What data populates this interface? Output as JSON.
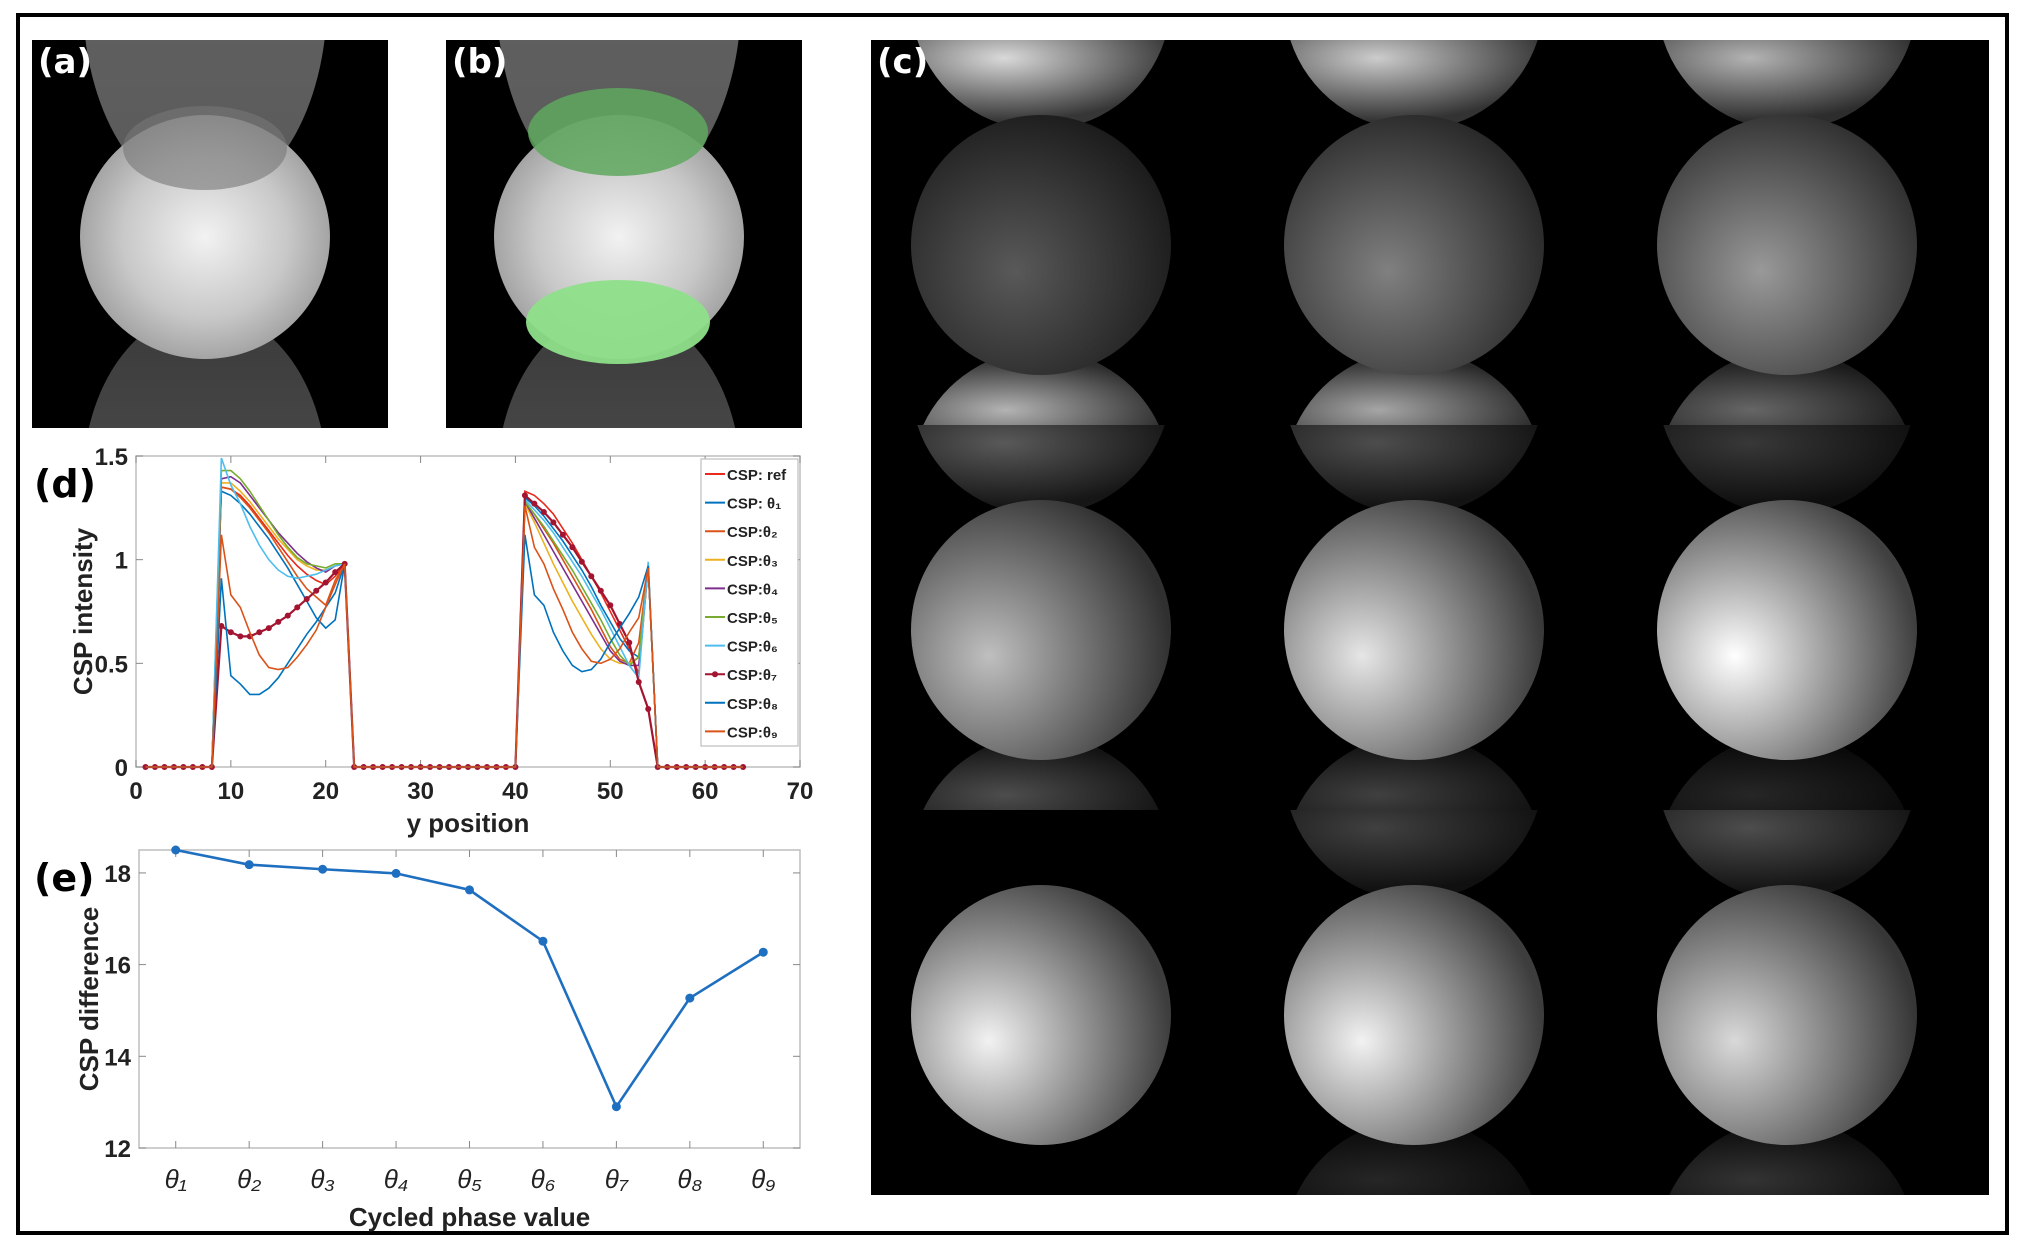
{
  "panels": {
    "a": {
      "label": "(a)"
    },
    "b": {
      "label": "(b)"
    },
    "c": {
      "label": "(c)"
    }
  },
  "chart_data": [
    {
      "type": "line",
      "panel_label": "(d)",
      "xlabel": "y position",
      "ylabel": "CSP intensity",
      "xlim": [
        0,
        70
      ],
      "ylim": [
        0,
        1.5
      ],
      "xticks": [
        0,
        10,
        20,
        30,
        40,
        50,
        60,
        70
      ],
      "xtick_labels": [
        "0",
        "10",
        "20",
        "30",
        "40",
        "50",
        "60",
        "70"
      ],
      "yticks": [
        0,
        0.5,
        1,
        1.5
      ],
      "ytick_labels": [
        "0",
        "0.5",
        "1",
        "1.5"
      ],
      "legend_position": "top-right",
      "x": [
        1,
        2,
        3,
        4,
        5,
        6,
        7,
        8,
        9,
        10,
        11,
        12,
        13,
        14,
        15,
        16,
        17,
        18,
        19,
        20,
        21,
        22,
        23,
        24,
        25,
        26,
        27,
        28,
        29,
        30,
        31,
        32,
        33,
        34,
        35,
        36,
        37,
        38,
        39,
        40,
        41,
        42,
        43,
        44,
        45,
        46,
        47,
        48,
        49,
        50,
        51,
        52,
        53,
        54,
        55,
        56,
        57,
        58,
        59,
        60,
        61,
        62,
        63,
        64
      ],
      "series": [
        {
          "name": "CSP: ref",
          "color": "#E8291C",
          "marker": false,
          "values": [
            0,
            0,
            0,
            0,
            0,
            0,
            0,
            0,
            1.35,
            1.34,
            1.31,
            1.26,
            1.2,
            1.14,
            1.08,
            1.02,
            0.97,
            0.93,
            0.9,
            0.88,
            0.92,
            0.98,
            0,
            0,
            0,
            0,
            0,
            0,
            0,
            0,
            0,
            0,
            0,
            0,
            0,
            0,
            0,
            0,
            0,
            0,
            1.33,
            1.31,
            1.27,
            1.22,
            1.15,
            1.08,
            1.0,
            0.92,
            0.84,
            0.75,
            0.66,
            0.57,
            0.45,
            0.97,
            0,
            0,
            0,
            0,
            0,
            0,
            0,
            0,
            0,
            0
          ]
        },
        {
          "name": "CSP: θ₁",
          "color": "#0072BD",
          "marker": false,
          "values": [
            0,
            0,
            0,
            0,
            0,
            0,
            0,
            0,
            1.33,
            1.31,
            1.27,
            1.22,
            1.16,
            1.1,
            1.03,
            0.96,
            0.88,
            0.8,
            0.72,
            0.67,
            0.71,
            0.98,
            0,
            0,
            0,
            0,
            0,
            0,
            0,
            0,
            0,
            0,
            0,
            0,
            0,
            0,
            0,
            0,
            0,
            0,
            1.3,
            1.26,
            1.21,
            1.15,
            1.09,
            1.02,
            0.95,
            0.87,
            0.78,
            0.7,
            0.62,
            0.56,
            0.53,
            0.97,
            0,
            0,
            0,
            0,
            0,
            0,
            0,
            0,
            0,
            0
          ]
        },
        {
          "name": "CSP:θ₂",
          "color": "#D95319",
          "marker": false,
          "values": [
            0,
            0,
            0,
            0,
            0,
            0,
            0,
            0,
            1.35,
            1.34,
            1.3,
            1.25,
            1.19,
            1.13,
            1.06,
            0.99,
            0.92,
            0.86,
            0.82,
            0.78,
            0.9,
            0.98,
            0,
            0,
            0,
            0,
            0,
            0,
            0,
            0,
            0,
            0,
            0,
            0,
            0,
            0,
            0,
            0,
            0,
            0,
            1.28,
            1.22,
            1.15,
            1.08,
            1.0,
            0.92,
            0.84,
            0.76,
            0.67,
            0.58,
            0.52,
            0.5,
            0.6,
            0.97,
            0,
            0,
            0,
            0,
            0,
            0,
            0,
            0,
            0,
            0
          ]
        },
        {
          "name": "CSP:θ₃",
          "color": "#EDB120",
          "marker": false,
          "values": [
            0,
            0,
            0,
            0,
            0,
            0,
            0,
            0,
            1.37,
            1.37,
            1.33,
            1.28,
            1.22,
            1.16,
            1.1,
            1.05,
            1.0,
            0.97,
            0.95,
            0.95,
            0.97,
            0.98,
            0,
            0,
            0,
            0,
            0,
            0,
            0,
            0,
            0,
            0,
            0,
            0,
            0,
            0,
            0,
            0,
            0,
            0,
            1.27,
            1.18,
            1.08,
            0.98,
            0.89,
            0.8,
            0.72,
            0.64,
            0.57,
            0.52,
            0.5,
            0.5,
            0.53,
            0.96,
            0,
            0,
            0,
            0,
            0,
            0,
            0,
            0,
            0,
            0
          ]
        },
        {
          "name": "CSP:θ₄",
          "color": "#7E2F8E",
          "marker": false,
          "values": [
            0,
            0,
            0,
            0,
            0,
            0,
            0,
            0,
            1.39,
            1.4,
            1.37,
            1.31,
            1.25,
            1.19,
            1.13,
            1.08,
            1.03,
            0.99,
            0.96,
            0.94,
            0.97,
            0.98,
            0,
            0,
            0,
            0,
            0,
            0,
            0,
            0,
            0,
            0,
            0,
            0,
            0,
            0,
            0,
            0,
            0,
            0,
            1.28,
            1.2,
            1.12,
            1.04,
            0.96,
            0.88,
            0.8,
            0.72,
            0.64,
            0.56,
            0.51,
            0.49,
            0.49,
            0.96,
            0,
            0,
            0,
            0,
            0,
            0,
            0,
            0,
            0,
            0
          ]
        },
        {
          "name": "CSP:θ₅",
          "color": "#77AC30",
          "marker": false,
          "values": [
            0,
            0,
            0,
            0,
            0,
            0,
            0,
            0,
            1.43,
            1.43,
            1.39,
            1.33,
            1.26,
            1.19,
            1.12,
            1.06,
            1.01,
            0.98,
            0.97,
            0.96,
            0.98,
            0.98,
            0,
            0,
            0,
            0,
            0,
            0,
            0,
            0,
            0,
            0,
            0,
            0,
            0,
            0,
            0,
            0,
            0,
            0,
            1.28,
            1.22,
            1.16,
            1.09,
            1.02,
            0.95,
            0.87,
            0.79,
            0.71,
            0.62,
            0.54,
            0.49,
            0.53,
            0.96,
            0,
            0,
            0,
            0,
            0,
            0,
            0,
            0,
            0,
            0
          ]
        },
        {
          "name": "CSP:θ₆",
          "color": "#4DBEEE",
          "marker": false,
          "values": [
            0,
            0,
            0,
            0,
            0,
            0,
            0,
            0,
            1.49,
            1.36,
            1.27,
            1.16,
            1.07,
            1.0,
            0.95,
            0.92,
            0.91,
            0.92,
            0.93,
            0.95,
            0.97,
            0.98,
            0,
            0,
            0,
            0,
            0,
            0,
            0,
            0,
            0,
            0,
            0,
            0,
            0,
            0,
            0,
            0,
            0,
            0,
            1.29,
            1.24,
            1.19,
            1.13,
            1.06,
            0.99,
            0.92,
            0.84,
            0.76,
            0.67,
            0.58,
            0.49,
            0.43,
            0.99,
            0,
            0,
            0,
            0,
            0,
            0,
            0,
            0,
            0,
            0
          ]
        },
        {
          "name": "CSP:θ₇",
          "color": "#A2142F",
          "marker": true,
          "values": [
            0,
            0,
            0,
            0,
            0,
            0,
            0,
            0,
            0.68,
            0.65,
            0.63,
            0.63,
            0.65,
            0.67,
            0.7,
            0.73,
            0.77,
            0.81,
            0.85,
            0.89,
            0.94,
            0.98,
            0,
            0,
            0,
            0,
            0,
            0,
            0,
            0,
            0,
            0,
            0,
            0,
            0,
            0,
            0,
            0,
            0,
            0,
            1.31,
            1.27,
            1.23,
            1.18,
            1.12,
            1.06,
            0.99,
            0.92,
            0.85,
            0.78,
            0.69,
            0.6,
            0.41,
            0.28,
            0,
            0,
            0,
            0,
            0,
            0,
            0,
            0,
            0,
            0
          ]
        },
        {
          "name": "CSP:θ₈",
          "color": "#0072BD",
          "marker": false,
          "values": [
            0,
            0,
            0,
            0,
            0,
            0,
            0,
            0,
            0.91,
            0.44,
            0.4,
            0.35,
            0.35,
            0.38,
            0.43,
            0.5,
            0.57,
            0.64,
            0.7,
            0.77,
            0.84,
            0.98,
            0,
            0,
            0,
            0,
            0,
            0,
            0,
            0,
            0,
            0,
            0,
            0,
            0,
            0,
            0,
            0,
            0,
            0,
            1.12,
            0.83,
            0.78,
            0.65,
            0.56,
            0.49,
            0.46,
            0.47,
            0.52,
            0.6,
            0.67,
            0.74,
            0.82,
            0.97,
            0,
            0,
            0,
            0,
            0,
            0,
            0,
            0,
            0,
            0
          ]
        },
        {
          "name": "CSP:θ₉",
          "color": "#D95319",
          "marker": false,
          "values": [
            0,
            0,
            0,
            0,
            0,
            0,
            0,
            0,
            1.12,
            0.83,
            0.77,
            0.65,
            0.54,
            0.48,
            0.47,
            0.48,
            0.53,
            0.59,
            0.66,
            0.77,
            0.88,
            0.98,
            0,
            0,
            0,
            0,
            0,
            0,
            0,
            0,
            0,
            0,
            0,
            0,
            0,
            0,
            0,
            0,
            0,
            0,
            1.26,
            1.06,
            0.98,
            0.86,
            0.76,
            0.65,
            0.57,
            0.51,
            0.5,
            0.52,
            0.57,
            0.65,
            0.72,
            0.96,
            0,
            0,
            0,
            0,
            0,
            0,
            0,
            0,
            0,
            0
          ]
        }
      ]
    },
    {
      "type": "line",
      "panel_label": "(e)",
      "xlabel": "Cycled phase value",
      "ylabel": "CSP difference",
      "categories": [
        "θ₁",
        "θ₂",
        "θ₃",
        "θ₄",
        "θ₅",
        "θ₆",
        "θ₇",
        "θ₈",
        "θ₉"
      ],
      "values": [
        18.5,
        18.18,
        18.08,
        17.99,
        17.63,
        16.51,
        12.9,
        15.27,
        16.27
      ],
      "ylim": [
        12,
        18.5
      ],
      "yticks": [
        12,
        14,
        16,
        18
      ],
      "ytick_labels": [
        "12",
        "14",
        "16",
        "18"
      ],
      "color": "#1F6FC0",
      "marker": true
    }
  ]
}
